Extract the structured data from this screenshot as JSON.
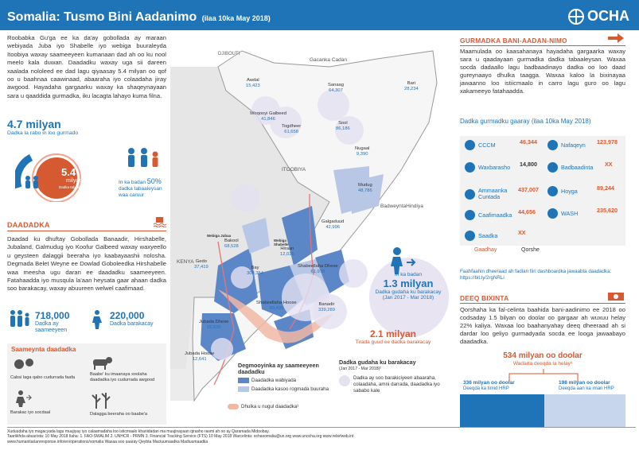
{
  "header": {
    "title": "Somalia: Tusmo Bini Aadanimo",
    "date": "(ilaa 10ka May 2018)",
    "logo": "OCHA"
  },
  "intro": "Roobabka Gu'ga ee ka da'ay gobollada ay maraan webiyada Juba iyo Shabelle iyo webiga buuraleyda Itoobiya waxay saameeyeen kumanaan dad ah oo ku nool meelo kala duwan. Daadadku waxay uga sii dareen xaalada nololeed ee dad lagu qiyaasay 5.4 milyan oo qof oo u baahnaa caawinaad, abaaraha iyo colaadaha jiray awgood. Hayadaha gargaarku waxay ka shaqeynayaan sara u qaaddida gurmadka, iku lacagta lahayo kuma filna.",
  "pin": {
    "total": "4.7 milyan",
    "total_label": "Dadka la rabo in loo gurmado",
    "pop": "5.4",
    "pop_unit": "milyan",
    "pop_label": "Dadka tabaaleysan",
    "pct": "50%",
    "pct_label_a": "In ka badan",
    "pct_label_b": "dadka tabaaleysan waa caruur"
  },
  "flood": {
    "heading": "DAADADKA",
    "text": "Daadad ku dhuftay Gobollada Banaadir, Hirshabelle, Jubaland, Galmudug iyo Koofur Galbeed waxay waxyeello u geysteen dalaggii beeraha iyo kaabayaashii nolosha. Degmada Belet Weyne ee Dowlad Goboleedka Hirshabelle waa meesha ugu daran ee daadadku saameeyeen. Fatahaadda iyo musqula la'aan heysata gaar ahaan dadka soo barakacay, waxay abuureen welwel caafimaad.",
    "affected": "718,000",
    "affected_label_a": "Dadka ay",
    "affected_label_b": "saameeyeen",
    "displaced": "220,000",
    "displaced_label": "Dadka barakacay"
  },
  "causes": {
    "heading": "Saameynta daadadka",
    "items": [
      "Cabsi laga qabo cudurrada faafa",
      "Baabe' ku imaanaya xoolaha daadadka iyo cudurrada awgood",
      "Barakac iyo socdaal",
      "Dalagga beeraha oo baabe'a"
    ]
  },
  "map": {
    "labels": {
      "djibouti": "DJIBOUTI",
      "gulf": "Gacanka Cadan",
      "ethiopia": "ITOOBIYA",
      "kenya": "KENYA",
      "ocean": "BadweyntaHindiya",
      "webiga_shabelle": "Webiga Shabelle",
      "webiga_juba": "Webiga Jubaa"
    },
    "regions": [
      {
        "name": "Awdal",
        "value": "15,423"
      },
      {
        "name": "Woqooyi Galbeed",
        "value": "41,846"
      },
      {
        "name": "Togdheer",
        "value": "61,658"
      },
      {
        "name": "Sanaag",
        "value": "64,307"
      },
      {
        "name": "Bari",
        "value": "28,234"
      },
      {
        "name": "Sool",
        "value": "86,186"
      },
      {
        "name": "Nugaal",
        "value": "9,390"
      },
      {
        "name": "Mudug",
        "value": "48,786"
      },
      {
        "name": "Galgaduud",
        "value": "42,996"
      },
      {
        "name": "Hiraan",
        "value": "12,026"
      },
      {
        "name": "Bakool",
        "value": "68,528"
      },
      {
        "name": "Gedo",
        "value": "37,419"
      },
      {
        "name": "Bay",
        "value": "308,354"
      },
      {
        "name": "Shabeellaha Dhexe",
        "value": "61,978"
      },
      {
        "name": "Shabeellaha Hoose",
        "value": "99,495"
      },
      {
        "name": "Banadir",
        "value": "339,289"
      },
      {
        "name": "Jubada Dhexe",
        "value": "15,530"
      },
      {
        "name": "Jubada Hoose",
        "value": "12,641"
      }
    ],
    "idp_circle": {
      "top": "In ka badan",
      "value": "1.3 milyan",
      "label": "Dadka gudaha ku barakacay",
      "period": "(Jan 2017 - Mar 2018)"
    },
    "idp_total": {
      "value": "2.1 milyan",
      "label": "Tirada guud ee dadka barakacay"
    },
    "legend": {
      "heading_a": "Degmooyinka ay saameeyeen",
      "heading_b": "daadadku",
      "item1": "Daadadka wabiyada",
      "item2": "Daadadka kasoo rogmada buuraha",
      "item3": "Dhulka u nugul daadadka¹",
      "idp_heading": "Dadka gudaha ku barakacay",
      "idp_period": "(Jan 2017 - Mar 2018)²",
      "idp_item": "Dadka ay soo barakiciyeen abaaraha, colaadaha, amni darrada, daadadka iyo sababo kale"
    }
  },
  "response": {
    "heading": "GURMADKA BANI-AADAN-NIMO",
    "text": "Maamulada oo kaasahanaya hayadaha gargaarka waxay sara u qaadayaan gurmadka dadka tabaaleysan. Waxaa socda dadaallo lagu badbaadinayo dadka oo loo daad gureynaayo dhulka taagga. Waxaa kaloo la bixinayaa jawaanno loo istiicmaalo in carro lagu guro oo lagu xakameeyo fatahaadda.",
    "sub": "Dadka gurmadku gaaray (ilaa 10ka May 2018)",
    "clusters": [
      {
        "name": "CCCM",
        "value": "46,344"
      },
      {
        "name": "Nafaqeyn",
        "value": "123,978"
      },
      {
        "name": "Waxbarasho",
        "value": "14,800"
      },
      {
        "name": "Badbaadinta",
        "value": "XX"
      },
      {
        "name": "Ammaanka Cuntada",
        "value": "437,007"
      },
      {
        "name": "Hoyga",
        "value": "89,244"
      },
      {
        "name": "Caafimaadka",
        "value": "44,656"
      },
      {
        "name": "WASH",
        "value": "235,620"
      },
      {
        "name": "Saadka",
        "value": "XX"
      }
    ],
    "gaadhay": "Gaadhay",
    "qorshe": "Qorshe",
    "link": "Faahfaahin dheeraad ah fadlan fiiri dashboardka jawaabta daadadka: https://bit.ly/2rgNRLi"
  },
  "funding": {
    "heading": "DEEQ BIXINTA",
    "text": "Qorshaha ka fal-celinta baahida bani-aadinimo ee 2018 oo codsaday 1.5 bilyan oo doolar oo gargaar ah wuxuu helay 22% kaliya. Waxaa loo baahanyahay deeq dheeraad ah si dardar loo geliyo gurmadyada socda ee looga jawaabayo daadadka.",
    "total": "534 milyan oo doolar",
    "total_label": "Wadarta deeqda la helay³",
    "left": "336 milyan oo doolar",
    "left_label": "Deeqda ka timid HRP",
    "right": "198 milyan oo doolar",
    "right_label": "Deeqda aan ka iman HRP"
  },
  "footer": {
    "line1": "Xuduudaha iyo magacyada lagu muujiyay iyo calaamadaha loo isticmaalo khariidadan ma muujinayaan qirasho rasmi ah oo ay Qaramada Midoobay.",
    "line2": "Taariikhda abuurista: 10 May 2018    Ilaha: 1. FAO-SWALIM  2. UNHCR - PRMN  3. Financial Tracking Service (FTS) 10 May 2018  Warcelinta: ochasomalia@un.org    www.unocha.org    www.reliefweb.int",
    "line3": "www.humanitarianresponse.info/en/operations/somalia    Waxaa soo saaray Qeybta Macluumaadka Madiuumaadka"
  },
  "colors": {
    "blue": "#1f73b7",
    "orange": "#d65a31",
    "riverine": "#5b87c8",
    "flash": "#b9c7e6"
  }
}
